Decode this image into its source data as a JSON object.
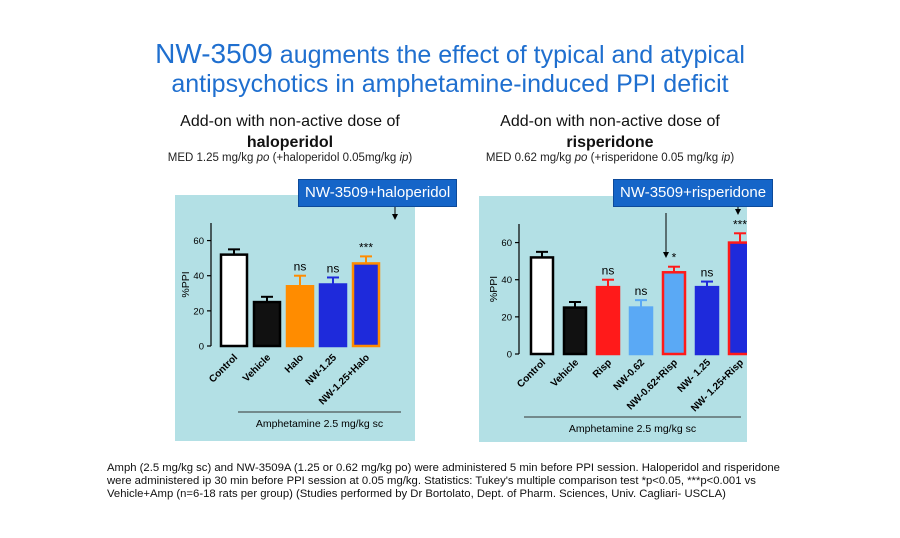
{
  "title": {
    "line1_prefix": "NW-3509",
    "line1_rest": " augments the effect of typical and atypical",
    "line2": "antipsychotics in amphetamine-induced PPI deficit"
  },
  "panels": [
    {
      "heading": "Add-on with non-active dose of",
      "drug": "haloperidol",
      "med_pre": "MED 1.25 mg/kg ",
      "med_po": "po",
      "med_mid": " (+haloperidol 0.05mg/kg ",
      "med_ip": "ip",
      "med_end": ")",
      "callout": "NW-3509+haloperidol",
      "bracket_label": "Amphetamine 2.5 mg/kg sc"
    },
    {
      "heading": "Add-on with non-active dose of",
      "drug": "risperidone",
      "med_pre": "MED 0.62 mg/kg ",
      "med_po": "po",
      "med_mid": " (+risperidone 0.05 mg/kg ",
      "med_ip": "ip",
      "med_end": ")",
      "callout": "NW-3509+risperidone",
      "bracket_label": "Amphetamine 2.5 mg/kg sc"
    }
  ],
  "chart_data": [
    {
      "type": "bar",
      "ylabel": "%PPI",
      "ylim": [
        0,
        70
      ],
      "yticks": [
        0,
        20,
        40,
        60
      ],
      "categories": [
        "Control",
        "Vehicle",
        "Halo",
        "NW-1.25",
        "NW-1.25+Halo"
      ],
      "values": [
        52,
        25,
        34,
        35,
        47
      ],
      "errors": [
        3,
        3,
        6,
        4,
        4
      ],
      "annotations": [
        "",
        "",
        "ns",
        "ns",
        "***"
      ],
      "colors": [
        "#ffffff",
        "#111111",
        "#ff8c00",
        "#1e2adb",
        "#1e2adb"
      ],
      "outlines": [
        "#000000",
        "#000000",
        "#ff8c00",
        "#1e2adb",
        "#ff8c00"
      ]
    },
    {
      "type": "bar",
      "ylabel": "%PPI",
      "ylim": [
        0,
        70
      ],
      "yticks": [
        0,
        20,
        40,
        60
      ],
      "categories": [
        "Control",
        "Vehicle",
        "Risp",
        "NW-0.62",
        "NW-0.62+Risp",
        "NW- 1.25",
        "NW- 1.25+Risp"
      ],
      "values": [
        52,
        25,
        36,
        25,
        44,
        36,
        60
      ],
      "errors": [
        3,
        3,
        4,
        4,
        3,
        3,
        5
      ],
      "annotations": [
        "",
        "",
        "ns",
        "ns",
        "*",
        "ns",
        "***"
      ],
      "colors": [
        "#ffffff",
        "#111111",
        "#ff1a1a",
        "#5aa9f5",
        "#5aa9f5",
        "#1e2adb",
        "#1e2adb"
      ],
      "outlines": [
        "#000000",
        "#000000",
        "#ff1a1a",
        "#5aa9f5",
        "#ff1a1a",
        "#1e2adb",
        "#ff1a1a"
      ]
    }
  ],
  "footnote": "Amph (2.5 mg/kg sc) and NW-3509A (1.25 or 0.62 mg/kg po) were administered 5 min before PPI session. Haloperidol and risperidone were administered ip 30 min before PPI session at 0.05 mg/kg. Statistics: Tukey's multiple comparison test *p<0.05, ***p<0.001 vs Vehicle+Amp (n=6-18 rats per group) (Studies performed by Dr Bortolato, Dept. of Pharm. Sciences, Univ. Cagliari- USCLA)"
}
